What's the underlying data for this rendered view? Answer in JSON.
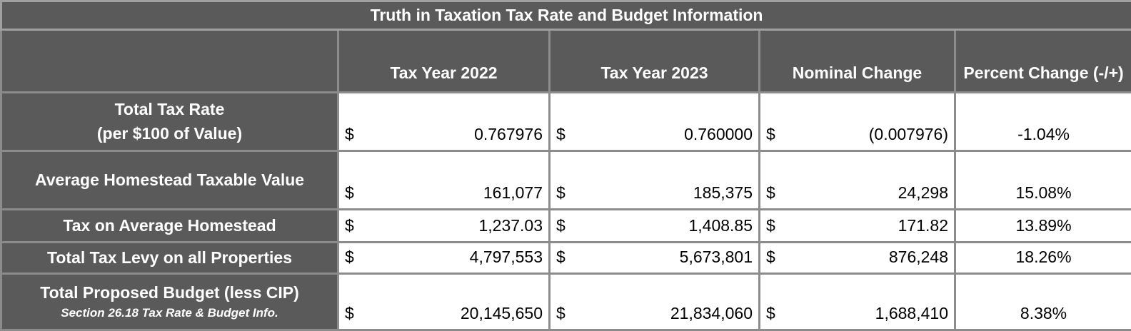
{
  "title": "Truth in Taxation  Tax Rate and Budget Information",
  "headers": [
    "Tax Year 2022",
    "Tax Year 2023",
    "Nominal Change",
    "Percent Change (-/+)"
  ],
  "rows": [
    {
      "label": [
        "Total Tax Rate",
        "(per $100 of Value)"
      ],
      "cells": [
        {
          "symbol": "$",
          "amount": "0.767976"
        },
        {
          "symbol": "$",
          "amount": "0.760000"
        },
        {
          "symbol": "$",
          "amount": "(0.007976)"
        },
        {
          "amount": "-1.04%"
        }
      ]
    },
    {
      "label": [
        "Average Homestead Taxable Value"
      ],
      "cells": [
        {
          "symbol": "$",
          "amount": "161,077"
        },
        {
          "symbol": "$",
          "amount": "185,375"
        },
        {
          "symbol": "$",
          "amount": "24,298"
        },
        {
          "amount": "15.08%"
        }
      ]
    },
    {
      "label": [
        "Tax on Average Homestead"
      ],
      "cells": [
        {
          "symbol": "$",
          "amount": "1,237.03"
        },
        {
          "symbol": "$",
          "amount": "1,408.85"
        },
        {
          "symbol": "$",
          "amount": "171.82"
        },
        {
          "amount": "13.89%"
        }
      ]
    },
    {
      "label": [
        "Total Tax Levy on all Properties"
      ],
      "cells": [
        {
          "symbol": "$",
          "amount": "4,797,553"
        },
        {
          "symbol": "$",
          "amount": "5,673,801"
        },
        {
          "symbol": "$",
          "amount": "876,248"
        },
        {
          "amount": "18.26%"
        }
      ]
    },
    {
      "label": [
        "Total Proposed Budget (less CIP)"
      ],
      "note": "Section 26.18 Tax Rate & Budget Info.",
      "cells": [
        {
          "symbol": "$",
          "amount": "20,145,650"
        },
        {
          "symbol": "$",
          "amount": "21,834,060"
        },
        {
          "symbol": "$",
          "amount": "1,688,410"
        },
        {
          "amount": "8.38%"
        }
      ]
    }
  ]
}
